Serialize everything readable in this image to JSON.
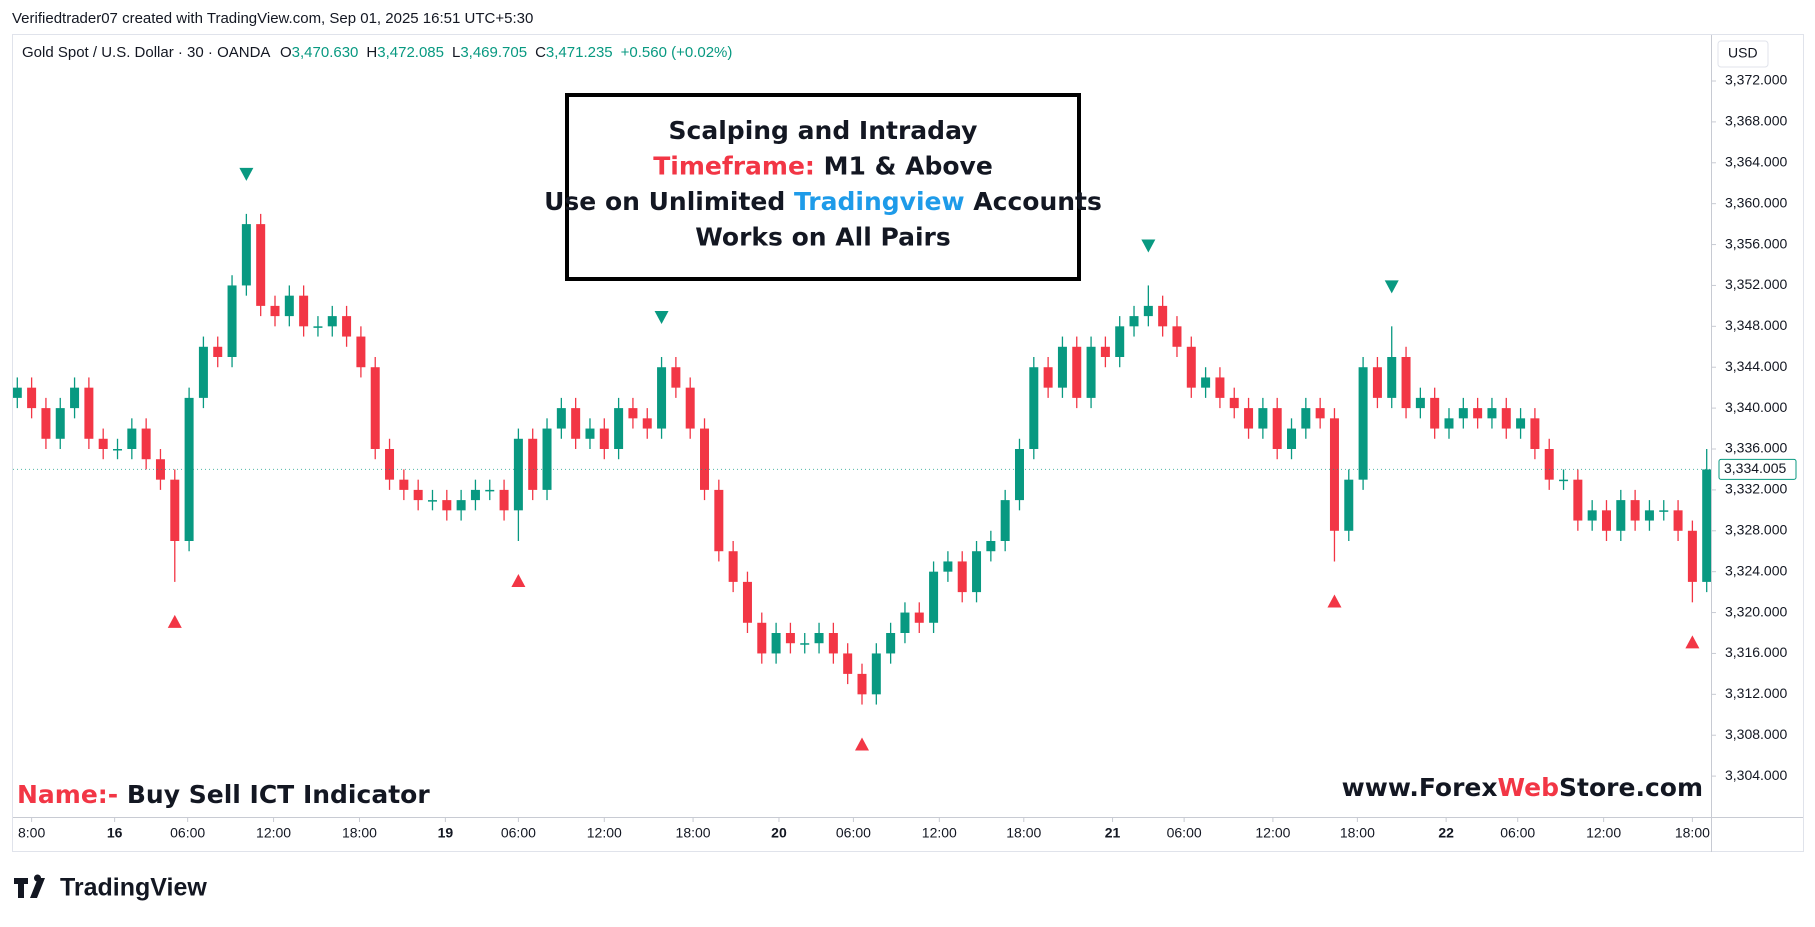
{
  "header": {
    "attribution": "Verifiedtrader07 created with TradingView.com, Sep 01, 2025 16:51 UTC+5:30",
    "currency": "USD",
    "logo": "TradingView"
  },
  "chart_data": {
    "type": "candlestick",
    "title": "Gold Spot / U.S. Dollar · 30 · OANDA",
    "ohlc_legend": [
      {
        "key": "O",
        "value": "3,470.630"
      },
      {
        "key": "H",
        "value": "3,472.085"
      },
      {
        "key": "L",
        "value": "3,469.705"
      },
      {
        "key": "C",
        "value": "3,471.235"
      }
    ],
    "change": "+0.560 (+0.02%)",
    "up_color": "#089981",
    "down_color": "#f23645",
    "open": [
      3341,
      3342,
      3340,
      3337,
      3340,
      3342,
      3337,
      3336,
      3336,
      3338,
      3335,
      3333,
      3327,
      3341,
      3346,
      3345,
      3352,
      3358,
      3350,
      3349,
      3351,
      3348,
      3348,
      3349,
      3347,
      3344,
      3336,
      3333,
      3332,
      3331,
      3331,
      3330,
      3331,
      3332,
      3332,
      3330,
      3337,
      3332,
      3338,
      3340,
      3337,
      3338,
      3336,
      3340,
      3339,
      3338,
      3344,
      3342,
      3338,
      3332,
      3326,
      3323,
      3319,
      3316,
      3318,
      3317,
      3317,
      3318,
      3316,
      3314,
      3312,
      3316,
      3318,
      3320,
      3319,
      3324,
      3325,
      3322,
      3326,
      3327,
      3331,
      3336,
      3344,
      3342,
      3346,
      3341,
      3346,
      3345,
      3348,
      3349,
      3350,
      3348,
      3346,
      3342,
      3343,
      3341,
      3340,
      3338,
      3340,
      3336,
      3338,
      3340,
      3339,
      3328,
      3333,
      3344,
      3341,
      3345,
      3340,
      3341,
      3338,
      3339,
      3340,
      3339,
      3340,
      3338,
      3339,
      3336,
      3333,
      3333,
      3329,
      3330,
      3328,
      3331,
      3329,
      3330,
      3330,
      3328,
      3323
    ],
    "high": [
      3343,
      3343,
      3341,
      3341,
      3343,
      3343,
      3338,
      3337,
      3339,
      3339,
      3336,
      3334,
      3342,
      3347,
      3347,
      3353,
      3359,
      3359,
      3351,
      3352,
      3352,
      3349,
      3350,
      3350,
      3348,
      3345,
      3337,
      3334,
      3333,
      3332,
      3332,
      3332,
      3333,
      3333,
      3333,
      3338,
      3338,
      3339,
      3341,
      3341,
      3339,
      3339,
      3341,
      3341,
      3340,
      3345,
      3345,
      3343,
      3339,
      3333,
      3327,
      3324,
      3320,
      3319,
      3319,
      3318,
      3319,
      3319,
      3317,
      3315,
      3317,
      3319,
      3321,
      3321,
      3325,
      3326,
      3326,
      3327,
      3328,
      3332,
      3337,
      3345,
      3345,
      3347,
      3347,
      3347,
      3347,
      3349,
      3350,
      3352,
      3351,
      3349,
      3347,
      3344,
      3344,
      3342,
      3341,
      3341,
      3341,
      3339,
      3341,
      3341,
      3340,
      3334,
      3345,
      3345,
      3348,
      3346,
      3342,
      3342,
      3340,
      3341,
      3341,
      3341,
      3341,
      3340,
      3340,
      3337,
      3334,
      3334,
      3331,
      3331,
      3332,
      3332,
      3331,
      3331,
      3331,
      3329,
      3336
    ],
    "low": [
      3340,
      3339,
      3336,
      3336,
      3339,
      3336,
      3335,
      3335,
      3335,
      3334,
      3332,
      3323,
      3326,
      3340,
      3344,
      3344,
      3351,
      3349,
      3348,
      3348,
      3347,
      3347,
      3347,
      3346,
      3343,
      3335,
      3332,
      3331,
      3330,
      3330,
      3329,
      3329,
      3330,
      3331,
      3329,
      3327,
      3331,
      3331,
      3337,
      3336,
      3336,
      3335,
      3335,
      3338,
      3337,
      3337,
      3341,
      3337,
      3331,
      3325,
      3322,
      3318,
      3315,
      3315,
      3316,
      3316,
      3316,
      3315,
      3313,
      3311,
      3311,
      3315,
      3317,
      3318,
      3318,
      3323,
      3321,
      3321,
      3325,
      3326,
      3330,
      3335,
      3341,
      3341,
      3340,
      3340,
      3344,
      3344,
      3347,
      3348,
      3347,
      3345,
      3341,
      3341,
      3340,
      3339,
      3337,
      3337,
      3335,
      3335,
      3337,
      3338,
      3325,
      3327,
      3332,
      3340,
      3340,
      3339,
      3339,
      3337,
      3337,
      3338,
      3338,
      3338,
      3337,
      3337,
      3335,
      3332,
      3332,
      3328,
      3328,
      3327,
      3327,
      3328,
      3328,
      3329,
      3327,
      3321,
      3322
    ],
    "close": [
      3342,
      3340,
      3337,
      3340,
      3342,
      3337,
      3336,
      3336,
      3338,
      3335,
      3333,
      3327,
      3341,
      3346,
      3345,
      3352,
      3358,
      3350,
      3349,
      3351,
      3348,
      3348,
      3349,
      3347,
      3344,
      3336,
      3333,
      3332,
      3331,
      3331,
      3330,
      3331,
      3332,
      3332,
      3330,
      3337,
      3332,
      3338,
      3340,
      3337,
      3338,
      3336,
      3340,
      3339,
      3338,
      3344,
      3342,
      3338,
      3332,
      3326,
      3323,
      3319,
      3316,
      3318,
      3317,
      3317,
      3318,
      3316,
      3314,
      3312,
      3316,
      3318,
      3320,
      3319,
      3324,
      3325,
      3322,
      3326,
      3327,
      3331,
      3336,
      3344,
      3342,
      3346,
      3341,
      3346,
      3345,
      3348,
      3349,
      3350,
      3348,
      3346,
      3342,
      3343,
      3341,
      3340,
      3338,
      3340,
      3336,
      3338,
      3340,
      3339,
      3328,
      3333,
      3344,
      3341,
      3345,
      3340,
      3341,
      3338,
      3339,
      3340,
      3339,
      3340,
      3338,
      3339,
      3336,
      3333,
      3333,
      3329,
      3330,
      3328,
      3331,
      3329,
      3330,
      3330,
      3328,
      3323,
      3334
    ],
    "xlim": [
      -0.3,
      118.3
    ],
    "xticks": [
      {
        "value": 1,
        "label": "8:00"
      },
      {
        "value": 6.8,
        "label": "16"
      },
      {
        "value": 11.9,
        "label": "06:00"
      },
      {
        "value": 17.9,
        "label": "12:00"
      },
      {
        "value": 23.9,
        "label": "18:00"
      },
      {
        "value": 29.9,
        "label": "19"
      },
      {
        "value": 35,
        "label": "06:00"
      },
      {
        "value": 41,
        "label": "12:00"
      },
      {
        "value": 47.2,
        "label": "18:00"
      },
      {
        "value": 53.2,
        "label": "20"
      },
      {
        "value": 58.4,
        "label": "06:00"
      },
      {
        "value": 64.4,
        "label": "12:00"
      },
      {
        "value": 70.3,
        "label": "18:00"
      },
      {
        "value": 76.5,
        "label": "21"
      },
      {
        "value": 81.5,
        "label": "06:00"
      },
      {
        "value": 87.7,
        "label": "12:00"
      },
      {
        "value": 93.6,
        "label": "18:00"
      },
      {
        "value": 99.8,
        "label": "22"
      },
      {
        "value": 104.8,
        "label": "06:00"
      },
      {
        "value": 110.8,
        "label": "12:00"
      },
      {
        "value": 117,
        "label": "18:00"
      }
    ],
    "ylim": [
      3300,
      3376.5
    ],
    "yticks": [
      {
        "value": 3304,
        "label": "3,304.000"
      },
      {
        "value": 3308,
        "label": "3,308.000"
      },
      {
        "value": 3312,
        "label": "3,312.000"
      },
      {
        "value": 3316,
        "label": "3,316.000"
      },
      {
        "value": 3320,
        "label": "3,320.000"
      },
      {
        "value": 3324,
        "label": "3,324.000"
      },
      {
        "value": 3328,
        "label": "3,328.000"
      },
      {
        "value": 3332,
        "label": "3,332.000"
      },
      {
        "value": 3336,
        "label": "3,336.000"
      },
      {
        "value": 3340,
        "label": "3,340.000"
      },
      {
        "value": 3344,
        "label": "3,344.000"
      },
      {
        "value": 3348,
        "label": "3,348.000"
      },
      {
        "value": 3352,
        "label": "3,352.000"
      },
      {
        "value": 3356,
        "label": "3,356.000"
      },
      {
        "value": 3360,
        "label": "3,360.000"
      },
      {
        "value": 3364,
        "label": "3,364.000"
      },
      {
        "value": 3368,
        "label": "3,368.000"
      },
      {
        "value": 3372,
        "label": "3,372.000"
      }
    ],
    "last_price": {
      "value": 3334.005,
      "label": "3,334.005"
    },
    "sell_signals": {
      "color": "#089981",
      "indices": [
        16,
        45,
        79,
        96
      ]
    },
    "buy_signals": {
      "color": "#f23645",
      "indices": [
        11,
        35,
        59,
        92,
        117
      ]
    },
    "promo_box": [
      [
        {
          "text": "Scalping and Intraday"
        }
      ],
      [
        {
          "text": "Timeframe:",
          "color": "#f23645"
        },
        {
          "text": " M1 & Above"
        }
      ],
      [
        {
          "text": "Use on Unlimited "
        },
        {
          "text": "Tradingview",
          "color": "#1e9be9"
        },
        {
          "text": " Accounts"
        }
      ],
      [
        {
          "text": "Works on All Pairs"
        }
      ]
    ],
    "name_label": [
      {
        "text": "Name:-",
        "color": "#f23645"
      },
      {
        "text": " Buy Sell ICT Indicator"
      }
    ],
    "website": [
      {
        "text": "www.Forex"
      },
      {
        "text": "Web",
        "color": "#f23645"
      },
      {
        "text": "Store.com"
      }
    ]
  }
}
